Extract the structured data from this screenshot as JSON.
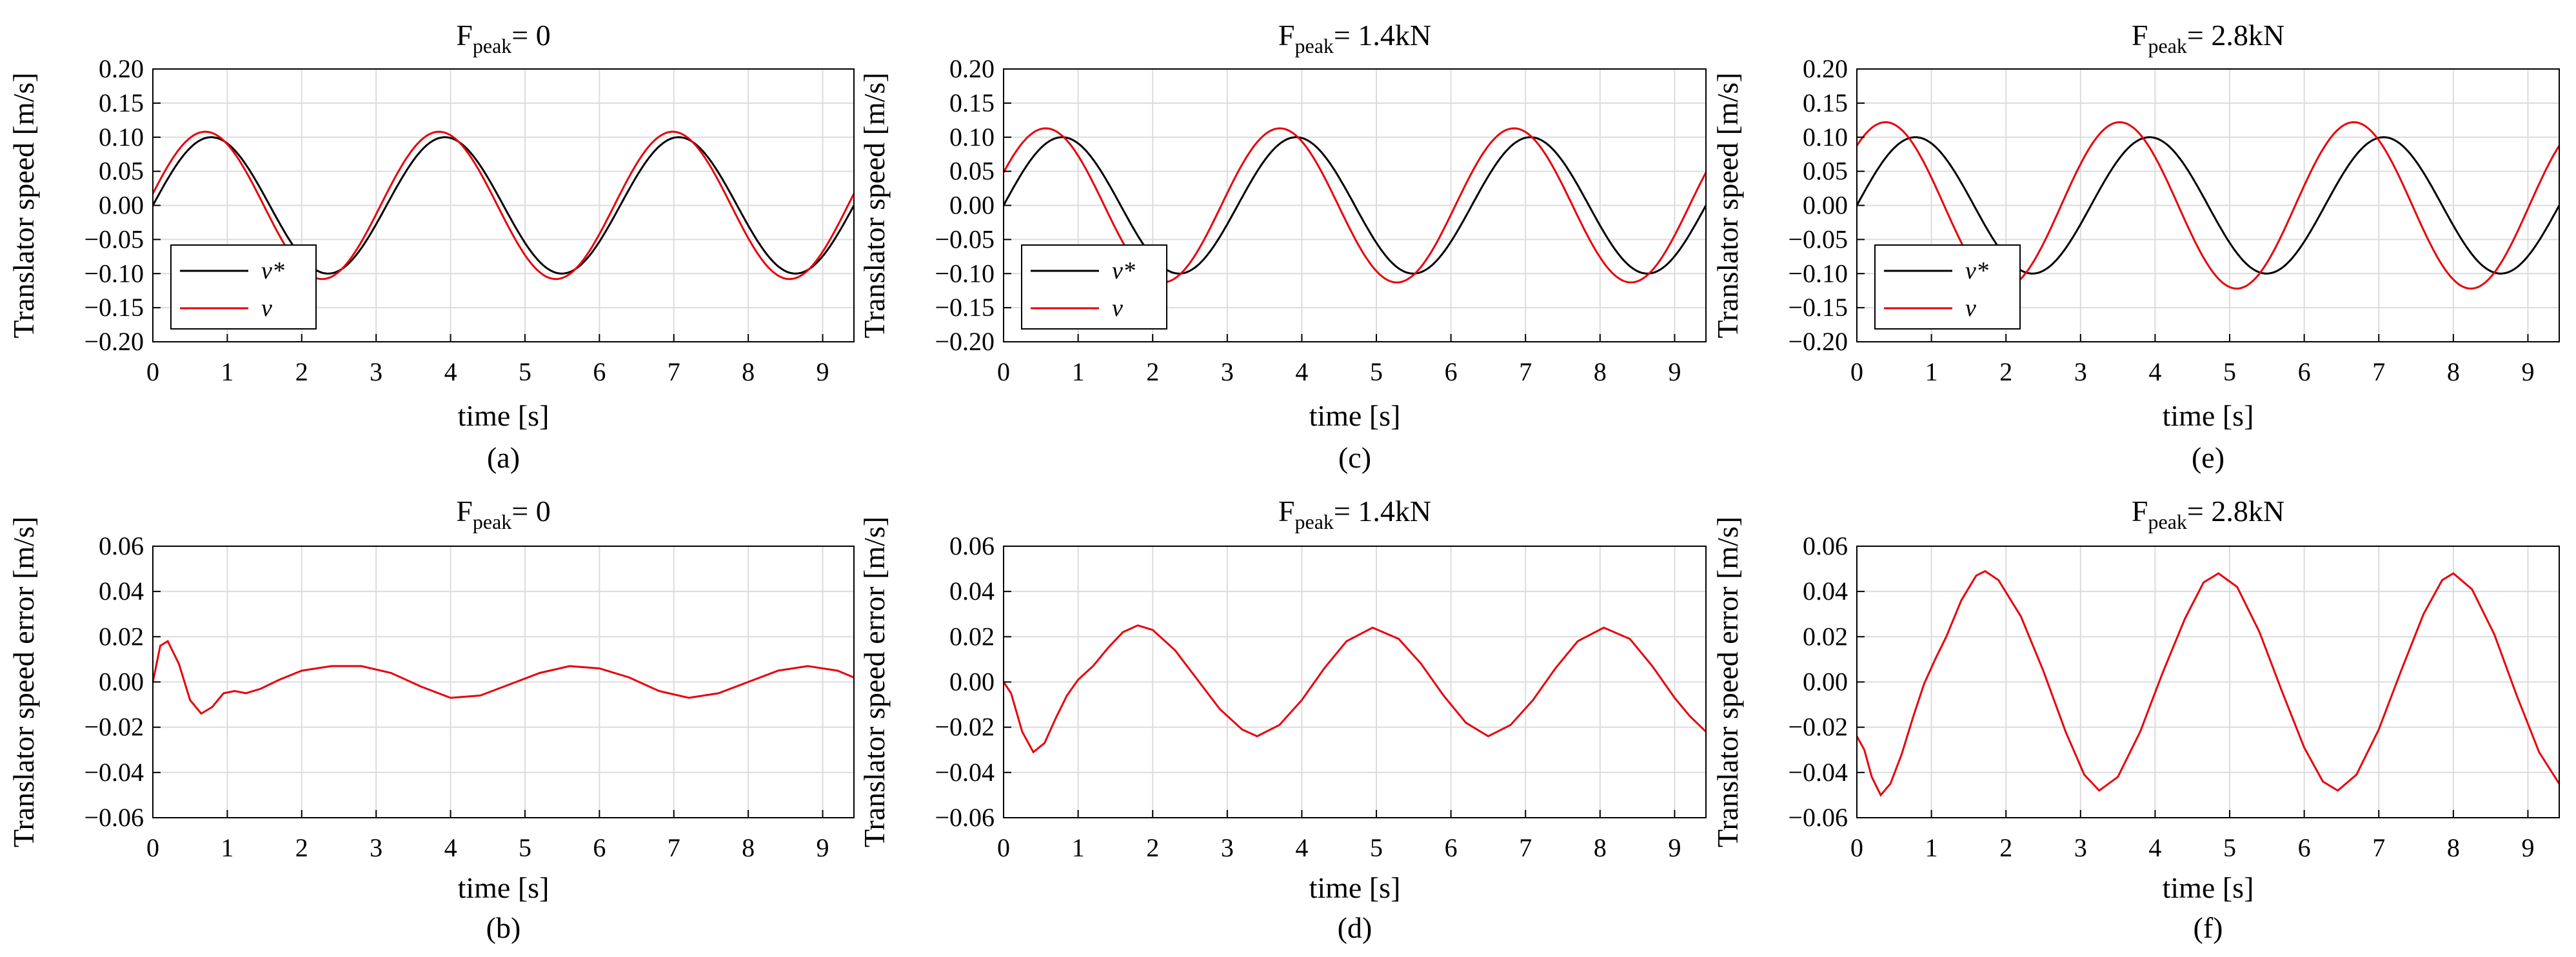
{
  "figure": {
    "captions": [
      "(a)",
      "(c)",
      "(e)",
      "(b)",
      "(d)",
      "(f)"
    ]
  },
  "colors": {
    "reference": "#000000",
    "measured": "#e8000b",
    "grid": "#dcdcdc"
  },
  "chart_data": [
    {
      "id": "a",
      "type": "line",
      "title_main": "F",
      "title_sub": "peak",
      "title_rest": "= 0",
      "caption": "(a)",
      "xlabel": "time [s]",
      "ylabel": "Translator speed [m/s]",
      "xlim": [
        0,
        9.42
      ],
      "ylim": [
        -0.2,
        0.2
      ],
      "xticks": [
        0,
        1,
        2,
        3,
        4,
        5,
        6,
        7,
        8,
        9
      ],
      "xtick_labels": [
        "0",
        "1",
        "2",
        "3",
        "4",
        "5",
        "6",
        "7",
        "8",
        "9"
      ],
      "yticks": [
        -0.2,
        -0.15,
        -0.1,
        -0.05,
        0,
        0.05,
        0.1,
        0.15,
        0.2
      ],
      "ytick_labels": [
        "−0.20",
        "−0.15",
        "−0.10",
        "−0.05",
        "0.00",
        "0.05",
        "0.10",
        "0.15",
        "0.20"
      ],
      "grid": true,
      "legend": {
        "position": "lower-left",
        "entries": [
          "v*",
          "v"
        ]
      },
      "series": [
        {
          "name": "v*",
          "color": "#000000",
          "model": {
            "amp": 0.1,
            "period": 3.14,
            "phase": 0,
            "offset": 0
          }
        },
        {
          "name": "v",
          "color": "#e8000b",
          "model": {
            "amp": 0.108,
            "period": 3.14,
            "phase": -0.08,
            "offset": 0,
            "start": 0
          }
        }
      ],
      "x_samples_start": 0,
      "x_samples_end": 9.42
    },
    {
      "id": "c",
      "type": "line",
      "title_main": "F",
      "title_sub": "peak",
      "title_rest": "= 1.4kN",
      "caption": "(c)",
      "xlabel": "time [s]",
      "ylabel": "Translator speed [m/s]",
      "xlim": [
        0,
        9.42
      ],
      "ylim": [
        -0.2,
        0.2
      ],
      "xticks": [
        0,
        1,
        2,
        3,
        4,
        5,
        6,
        7,
        8,
        9
      ],
      "xtick_labels": [
        "0",
        "1",
        "2",
        "3",
        "4",
        "5",
        "6",
        "7",
        "8",
        "9"
      ],
      "yticks": [
        -0.2,
        -0.15,
        -0.1,
        -0.05,
        0,
        0.05,
        0.1,
        0.15,
        0.2
      ],
      "ytick_labels": [
        "−0.20",
        "−0.15",
        "−0.10",
        "−0.05",
        "0.00",
        "0.05",
        "0.10",
        "0.15",
        "0.20"
      ],
      "grid": true,
      "legend": {
        "position": "lower-left",
        "entries": [
          "v*",
          "v"
        ]
      },
      "series": [
        {
          "name": "v*",
          "color": "#000000",
          "model": {
            "amp": 0.1,
            "period": 3.14,
            "phase": 0,
            "offset": 0
          }
        },
        {
          "name": "v",
          "color": "#e8000b",
          "model": {
            "amp": 0.113,
            "period": 3.14,
            "phase": -0.22,
            "offset": 0
          }
        }
      ]
    },
    {
      "id": "e",
      "type": "line",
      "title_main": "F",
      "title_sub": "peak",
      "title_rest": "= 2.8kN",
      "caption": "(e)",
      "xlabel": "time [s]",
      "ylabel": "Translator speed [m/s]",
      "xlim": [
        0,
        9.42
      ],
      "ylim": [
        -0.2,
        0.2
      ],
      "xticks": [
        0,
        1,
        2,
        3,
        4,
        5,
        6,
        7,
        8,
        9
      ],
      "xtick_labels": [
        "0",
        "1",
        "2",
        "3",
        "4",
        "5",
        "6",
        "7",
        "8",
        "9"
      ],
      "yticks": [
        -0.2,
        -0.15,
        -0.1,
        -0.05,
        0,
        0.05,
        0.1,
        0.15,
        0.2
      ],
      "ytick_labels": [
        "−0.20",
        "−0.15",
        "−0.10",
        "−0.05",
        "0.00",
        "0.05",
        "0.10",
        "0.15",
        "0.20"
      ],
      "grid": true,
      "legend": {
        "position": "lower-left",
        "entries": [
          "v*",
          "v"
        ]
      },
      "series": [
        {
          "name": "v*",
          "color": "#000000",
          "model": {
            "amp": 0.1,
            "period": 3.14,
            "phase": 0,
            "offset": 0
          }
        },
        {
          "name": "v",
          "color": "#e8000b",
          "model": {
            "amp": 0.122,
            "period": 3.14,
            "phase": -0.4,
            "offset": 0
          }
        }
      ]
    },
    {
      "id": "b",
      "type": "line",
      "title_main": "F",
      "title_sub": "peak",
      "title_rest": "= 0",
      "caption": "(b)",
      "xlabel": "time [s]",
      "ylabel": "Translator speed error [m/s]",
      "xlim": [
        0,
        9.42
      ],
      "ylim": [
        -0.06,
        0.06
      ],
      "xticks": [
        0,
        1,
        2,
        3,
        4,
        5,
        6,
        7,
        8,
        9
      ],
      "xtick_labels": [
        "0",
        "1",
        "2",
        "3",
        "4",
        "5",
        "6",
        "7",
        "8",
        "9"
      ],
      "yticks": [
        -0.06,
        -0.04,
        -0.02,
        0,
        0.02,
        0.04,
        0.06
      ],
      "ytick_labels": [
        "−0.06",
        "−0.04",
        "−0.02",
        "0.00",
        "0.02",
        "0.04",
        "0.06"
      ],
      "grid": true,
      "series": [
        {
          "name": "error",
          "color": "#e8000b",
          "points": [
            [
              0,
              0
            ],
            [
              0.1,
              0.016
            ],
            [
              0.2,
              0.018
            ],
            [
              0.35,
              0.008
            ],
            [
              0.5,
              -0.008
            ],
            [
              0.65,
              -0.014
            ],
            [
              0.8,
              -0.011
            ],
            [
              0.95,
              -0.005
            ],
            [
              1.1,
              -0.004
            ],
            [
              1.25,
              -0.005
            ],
            [
              1.45,
              -0.003
            ],
            [
              1.7,
              0.001
            ],
            [
              2.0,
              0.005
            ],
            [
              2.4,
              0.007
            ],
            [
              2.8,
              0.007
            ],
            [
              3.2,
              0.004
            ],
            [
              3.6,
              -0.002
            ],
            [
              4.0,
              -0.007
            ],
            [
              4.4,
              -0.006
            ],
            [
              4.8,
              -0.001
            ],
            [
              5.2,
              0.004
            ],
            [
              5.6,
              0.007
            ],
            [
              6.0,
              0.006
            ],
            [
              6.4,
              0.002
            ],
            [
              6.8,
              -0.004
            ],
            [
              7.2,
              -0.007
            ],
            [
              7.6,
              -0.005
            ],
            [
              8.0,
              0.0
            ],
            [
              8.4,
              0.005
            ],
            [
              8.8,
              0.007
            ],
            [
              9.2,
              0.005
            ],
            [
              9.42,
              0.002
            ]
          ]
        }
      ]
    },
    {
      "id": "d",
      "type": "line",
      "title_main": "F",
      "title_sub": "peak",
      "title_rest": "= 1.4kN",
      "caption": "(d)",
      "xlabel": "time [s]",
      "ylabel": "Translator speed error [m/s]",
      "xlim": [
        0,
        9.42
      ],
      "ylim": [
        -0.06,
        0.06
      ],
      "xticks": [
        0,
        1,
        2,
        3,
        4,
        5,
        6,
        7,
        8,
        9
      ],
      "xtick_labels": [
        "0",
        "1",
        "2",
        "3",
        "4",
        "5",
        "6",
        "7",
        "8",
        "9"
      ],
      "yticks": [
        -0.06,
        -0.04,
        -0.02,
        0,
        0.02,
        0.04,
        0.06
      ],
      "ytick_labels": [
        "−0.06",
        "−0.04",
        "−0.02",
        "0.00",
        "0.02",
        "0.04",
        "0.06"
      ],
      "grid": true,
      "series": [
        {
          "name": "error",
          "color": "#e8000b",
          "points": [
            [
              0,
              0
            ],
            [
              0.1,
              -0.005
            ],
            [
              0.25,
              -0.022
            ],
            [
              0.4,
              -0.031
            ],
            [
              0.55,
              -0.027
            ],
            [
              0.7,
              -0.016
            ],
            [
              0.85,
              -0.006
            ],
            [
              1.0,
              0.001
            ],
            [
              1.2,
              0.007
            ],
            [
              1.4,
              0.015
            ],
            [
              1.6,
              0.022
            ],
            [
              1.8,
              0.025
            ],
            [
              2.0,
              0.023
            ],
            [
              2.3,
              0.014
            ],
            [
              2.6,
              0.001
            ],
            [
              2.9,
              -0.012
            ],
            [
              3.2,
              -0.021
            ],
            [
              3.4,
              -0.024
            ],
            [
              3.7,
              -0.019
            ],
            [
              4.0,
              -0.008
            ],
            [
              4.3,
              0.006
            ],
            [
              4.6,
              0.018
            ],
            [
              4.95,
              0.024
            ],
            [
              5.3,
              0.019
            ],
            [
              5.6,
              0.008
            ],
            [
              5.9,
              -0.006
            ],
            [
              6.2,
              -0.018
            ],
            [
              6.5,
              -0.024
            ],
            [
              6.8,
              -0.019
            ],
            [
              7.1,
              -0.008
            ],
            [
              7.4,
              0.006
            ],
            [
              7.7,
              0.018
            ],
            [
              8.05,
              0.024
            ],
            [
              8.4,
              0.019
            ],
            [
              8.7,
              0.007
            ],
            [
              9.0,
              -0.007
            ],
            [
              9.2,
              -0.015
            ],
            [
              9.42,
              -0.022
            ]
          ]
        }
      ]
    },
    {
      "id": "f",
      "type": "line",
      "title_main": "F",
      "title_sub": "peak",
      "title_rest": "= 2.8kN",
      "caption": "(f)",
      "xlabel": "time [s]",
      "ylabel": "Translator speed error [m/s]",
      "xlim": [
        0,
        9.42
      ],
      "ylim": [
        -0.06,
        0.06
      ],
      "xticks": [
        0,
        1,
        2,
        3,
        4,
        5,
        6,
        7,
        8,
        9
      ],
      "xtick_labels": [
        "0",
        "1",
        "2",
        "3",
        "4",
        "5",
        "6",
        "7",
        "8",
        "9"
      ],
      "yticks": [
        -0.06,
        -0.04,
        -0.02,
        0,
        0.02,
        0.04,
        0.06
      ],
      "ytick_labels": [
        "−0.06",
        "−0.04",
        "−0.02",
        "0.00",
        "0.02",
        "0.04",
        "0.06"
      ],
      "grid": true,
      "series": [
        {
          "name": "error",
          "color": "#e8000b",
          "points": [
            [
              0,
              -0.024
            ],
            [
              0.1,
              -0.03
            ],
            [
              0.2,
              -0.042
            ],
            [
              0.32,
              -0.05
            ],
            [
              0.45,
              -0.045
            ],
            [
              0.6,
              -0.032
            ],
            [
              0.75,
              -0.016
            ],
            [
              0.9,
              -0.001
            ],
            [
              1.05,
              0.01
            ],
            [
              1.2,
              0.02
            ],
            [
              1.4,
              0.036
            ],
            [
              1.6,
              0.047
            ],
            [
              1.72,
              0.049
            ],
            [
              1.9,
              0.045
            ],
            [
              2.2,
              0.029
            ],
            [
              2.5,
              0.005
            ],
            [
              2.8,
              -0.022
            ],
            [
              3.05,
              -0.041
            ],
            [
              3.25,
              -0.048
            ],
            [
              3.5,
              -0.042
            ],
            [
              3.8,
              -0.022
            ],
            [
              4.1,
              0.004
            ],
            [
              4.4,
              0.028
            ],
            [
              4.65,
              0.044
            ],
            [
              4.85,
              0.048
            ],
            [
              5.1,
              0.042
            ],
            [
              5.4,
              0.022
            ],
            [
              5.7,
              -0.004
            ],
            [
              6.0,
              -0.029
            ],
            [
              6.25,
              -0.044
            ],
            [
              6.45,
              -0.048
            ],
            [
              6.7,
              -0.041
            ],
            [
              7.0,
              -0.021
            ],
            [
              7.3,
              0.005
            ],
            [
              7.6,
              0.03
            ],
            [
              7.85,
              0.045
            ],
            [
              8.0,
              0.048
            ],
            [
              8.25,
              0.041
            ],
            [
              8.55,
              0.021
            ],
            [
              8.85,
              -0.006
            ],
            [
              9.15,
              -0.031
            ],
            [
              9.42,
              -0.045
            ]
          ]
        }
      ]
    }
  ]
}
